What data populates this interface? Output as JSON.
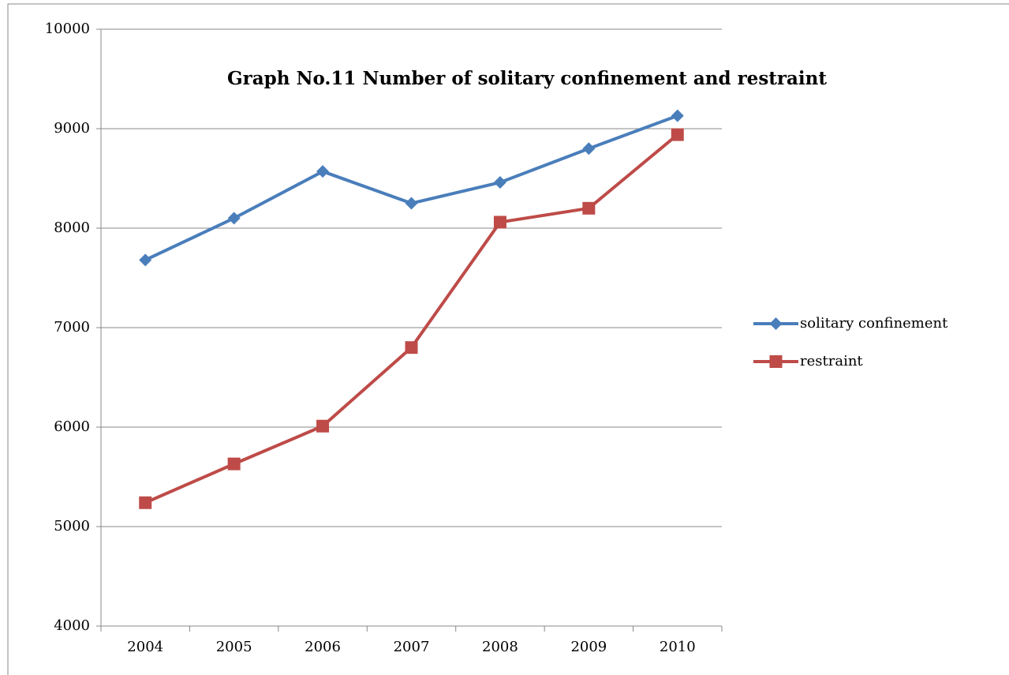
{
  "chart_data": {
    "type": "line",
    "title": "Graph No.11  Number of solitary confinement and restraint",
    "categories": [
      "2004",
      "2005",
      "2006",
      "2007",
      "2008",
      "2009",
      "2010"
    ],
    "series": [
      {
        "name": "solitary confinement",
        "color": "#4a7ebb",
        "marker": "diamond",
        "values": [
          7680,
          8100,
          8570,
          8250,
          8460,
          8800,
          9130
        ]
      },
      {
        "name": "restraint",
        "color": "#be4b48",
        "marker": "square",
        "values": [
          5240,
          5630,
          6010,
          6800,
          8060,
          8200,
          8940
        ]
      }
    ],
    "ylim": [
      4000,
      10000
    ],
    "yticks": [
      4000,
      5000,
      6000,
      7000,
      8000,
      9000,
      10000
    ],
    "grid": true,
    "legend": "right"
  }
}
